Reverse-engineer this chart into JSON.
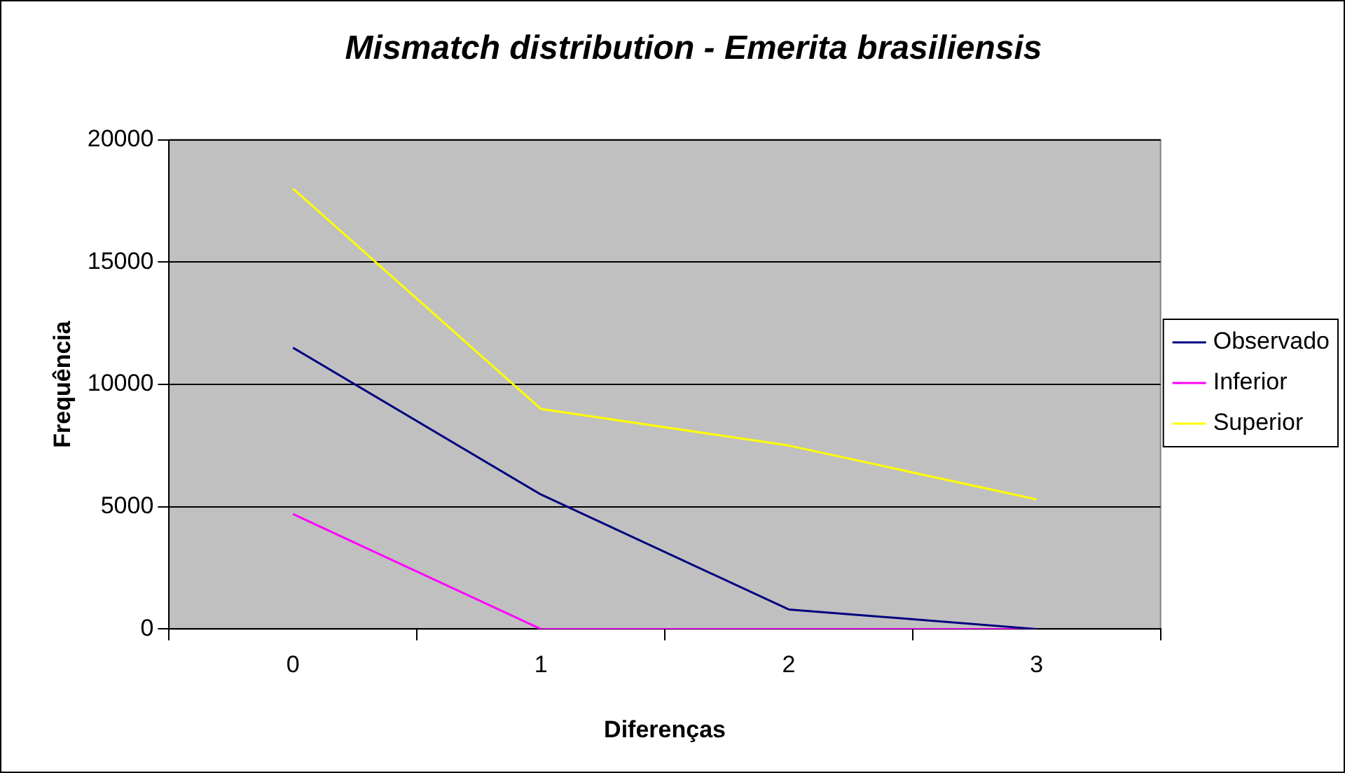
{
  "chart_data": {
    "type": "line",
    "title": "Mismatch distribution - Emerita brasiliensis",
    "xlabel": "Diferenças",
    "ylabel": "Frequência",
    "categories": [
      "0",
      "1",
      "2",
      "3"
    ],
    "series": [
      {
        "name": "Observado",
        "color": "#000080",
        "values": [
          11500,
          5500,
          800,
          0
        ]
      },
      {
        "name": "Inferior",
        "color": "#ff00ff",
        "values": [
          4700,
          0,
          0,
          0
        ]
      },
      {
        "name": "Superior",
        "color": "#ffff00",
        "values": [
          18000,
          9000,
          7500,
          5300
        ]
      }
    ],
    "ylim": [
      0,
      20000
    ],
    "yticks": [
      0,
      5000,
      10000,
      15000,
      20000
    ],
    "grid": "y",
    "legend": "right",
    "marker": "none",
    "line_style": "solid"
  }
}
